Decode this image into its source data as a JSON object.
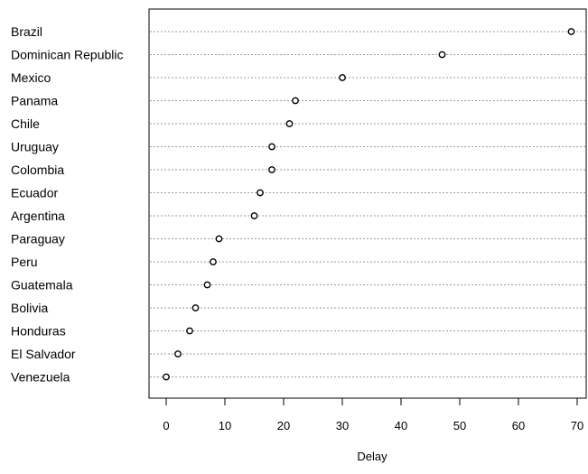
{
  "chart_data": {
    "type": "dotplot",
    "title": "",
    "xlabel": "Delay",
    "ylabel": "",
    "xlim": [
      -3,
      71
    ],
    "xticks": [
      0,
      10,
      20,
      30,
      40,
      50,
      60,
      70
    ],
    "grid": "horizontal-dotted",
    "legend": "none",
    "categories": [
      "Brazil",
      "Dominican Republic",
      "Mexico",
      "Panama",
      "Chile",
      "Uruguay",
      "Colombia",
      "Ecuador",
      "Argentina",
      "Paraguay",
      "Peru",
      "Guatemala",
      "Bolivia",
      "Honduras",
      "El Salvador",
      "Venezuela"
    ],
    "values": [
      69,
      47,
      30,
      22,
      21,
      18,
      18,
      16,
      15,
      9,
      8,
      7,
      5,
      4,
      2,
      0
    ]
  }
}
